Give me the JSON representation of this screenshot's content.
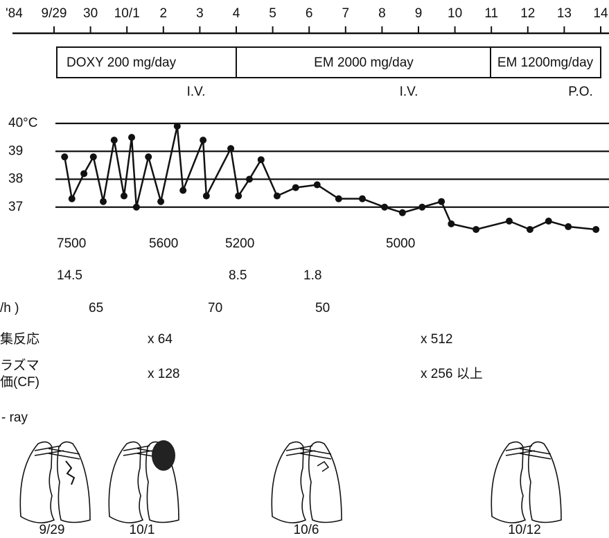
{
  "year_label": "'84",
  "chart_data": {
    "type": "line",
    "xlim": [
      0,
      15
    ],
    "xticks": [
      {
        "value": 0,
        "label": "9/29"
      },
      {
        "value": 1,
        "label": "30"
      },
      {
        "value": 2,
        "label": "10/1"
      },
      {
        "value": 3,
        "label": "2"
      },
      {
        "value": 4,
        "label": "3"
      },
      {
        "value": 5,
        "label": "4"
      },
      {
        "value": 6,
        "label": "5"
      },
      {
        "value": 7,
        "label": "6"
      },
      {
        "value": 8,
        "label": "7"
      },
      {
        "value": 9,
        "label": "8"
      },
      {
        "value": 10,
        "label": "9"
      },
      {
        "value": 11,
        "label": "10"
      },
      {
        "value": 12,
        "label": "11"
      },
      {
        "value": 13,
        "label": "12"
      },
      {
        "value": 14,
        "label": "13"
      },
      {
        "value": 15,
        "label": "14"
      }
    ],
    "ylim": [
      36,
      40
    ],
    "yticks": [
      {
        "value": 40,
        "label": "40°C"
      },
      39,
      38,
      37
    ],
    "grid": true,
    "color": "#111111",
    "x": [
      0.29,
      0.49,
      0.82,
      1.08,
      1.35,
      1.65,
      1.92,
      2.13,
      2.26,
      2.59,
      2.93,
      3.38,
      3.54,
      4.09,
      4.18,
      4.85,
      5.06,
      5.36,
      5.68,
      6.12,
      6.63,
      7.22,
      7.81,
      8.46,
      9.07,
      9.56,
      10.1,
      10.63,
      10.9,
      11.58,
      12.49,
      13.06,
      13.57,
      14.11,
      14.87
    ],
    "values": [
      38.8,
      37.3,
      38.2,
      38.8,
      37.2,
      39.4,
      37.4,
      39.5,
      37.0,
      38.8,
      37.2,
      39.9,
      37.6,
      39.4,
      37.4,
      39.1,
      37.4,
      38.0,
      38.7,
      37.4,
      37.7,
      37.8,
      37.3,
      37.3,
      37.0,
      36.8,
      37.0,
      37.2,
      36.4,
      36.2,
      36.5,
      36.2,
      36.5,
      36.3,
      36.2
    ]
  },
  "treatments": [
    {
      "label": "DOXY  200  mg/day"
    },
    {
      "label": "EM   2000  mg/day"
    },
    {
      "label": "EM 1200mg/day"
    }
  ],
  "routes": [
    "I.V.",
    "I.V.",
    "P.O."
  ],
  "labs": [
    {
      "cells": [
        "7500",
        "5600",
        "5200",
        "5000"
      ]
    },
    {
      "cells": [
        "14.5",
        "8.5",
        "1.8"
      ]
    },
    {
      "label": "/h )",
      "cells": [
        "65",
        "70",
        "50"
      ]
    },
    {
      "label": "集反応",
      "cells": [
        "x 64",
        "x 512"
      ]
    },
    {
      "label": "ラズマ",
      "label2": "価(CF)",
      "cells": [
        "x 128",
        "x 256 以上"
      ]
    }
  ],
  "xray": {
    "label": "- ray",
    "dates": [
      "9/29",
      "10/1",
      "10/6",
      "10/12"
    ]
  }
}
